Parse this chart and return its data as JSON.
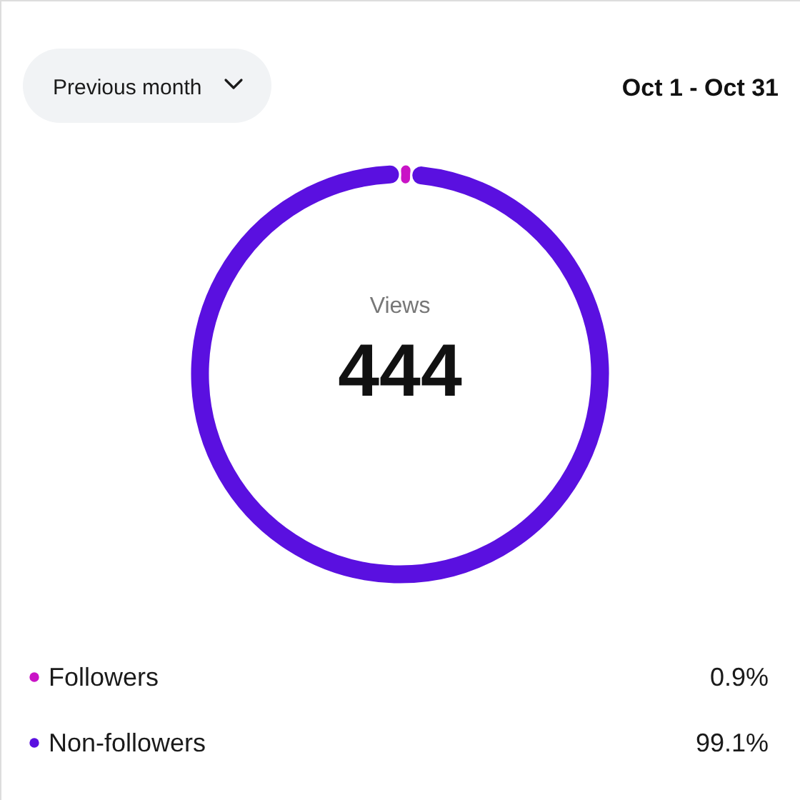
{
  "chart_data": {
    "type": "donut",
    "title": "Views",
    "subtitle": "Oct 1 - Oct 31",
    "annotations": [
      "Previous month",
      "444"
    ],
    "categories": [
      "Followers",
      "Non-followers"
    ],
    "values": [
      0.9,
      99.1
    ],
    "colors": [
      "#c913c6",
      "#5a10e0"
    ],
    "value_labels": [
      "0.9%",
      "99.1%"
    ],
    "legend": "bottom"
  }
}
